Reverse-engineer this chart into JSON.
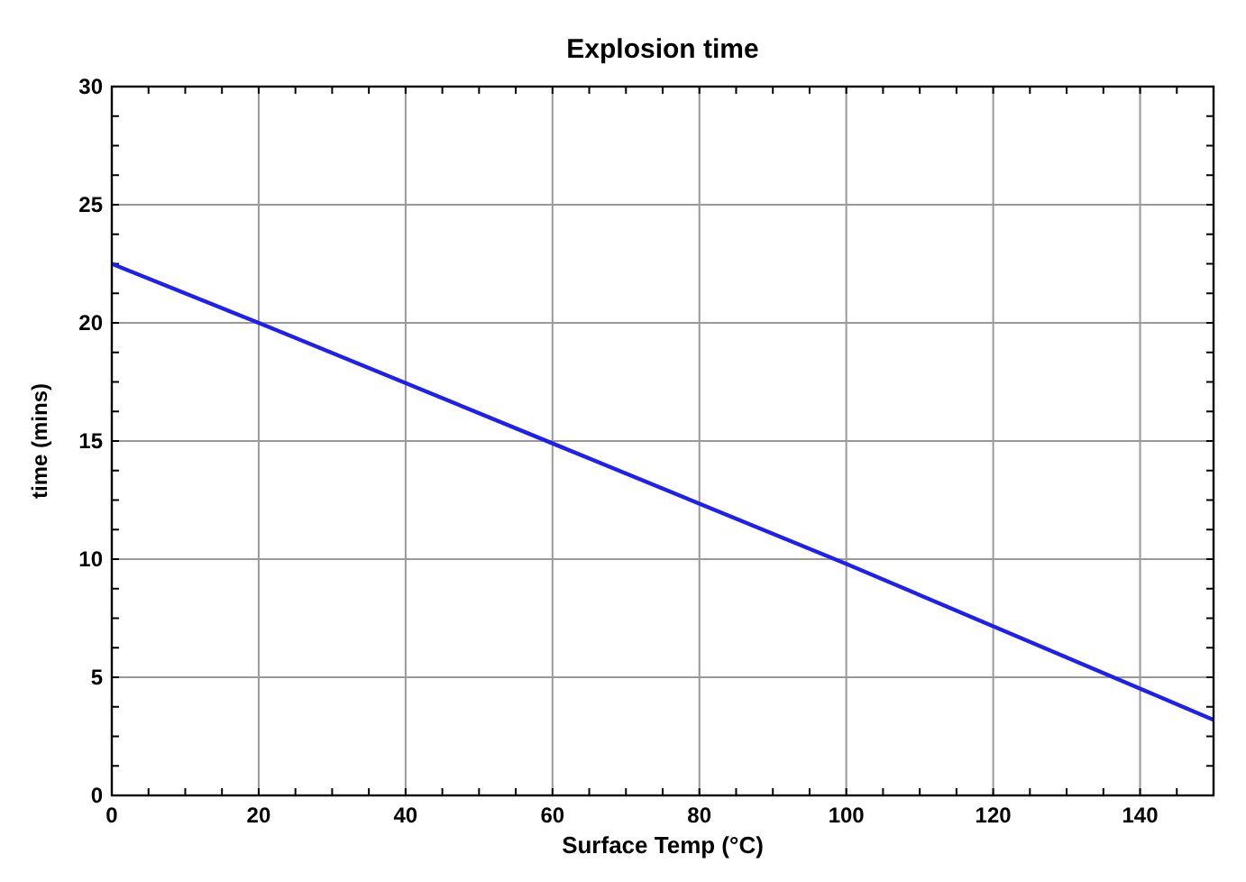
{
  "chart_data": {
    "type": "line",
    "title": "Explosion time",
    "xlabel": "Surface Temp (°C)",
    "ylabel": "time (mins)",
    "x": [
      0,
      20,
      60,
      100,
      150
    ],
    "series": [
      {
        "color": "#2020ee",
        "values": [
          22.5,
          20,
          14.9,
          9.8,
          3.2
        ]
      }
    ],
    "xlim": [
      0,
      150
    ],
    "xticks": [
      0,
      20,
      40,
      60,
      80,
      100,
      120,
      140
    ],
    "ylim": [
      0,
      30
    ],
    "yticks": [
      0,
      5,
      10,
      15,
      20,
      25,
      30
    ],
    "grid": true,
    "marker": "none",
    "line_style": "solid"
  }
}
